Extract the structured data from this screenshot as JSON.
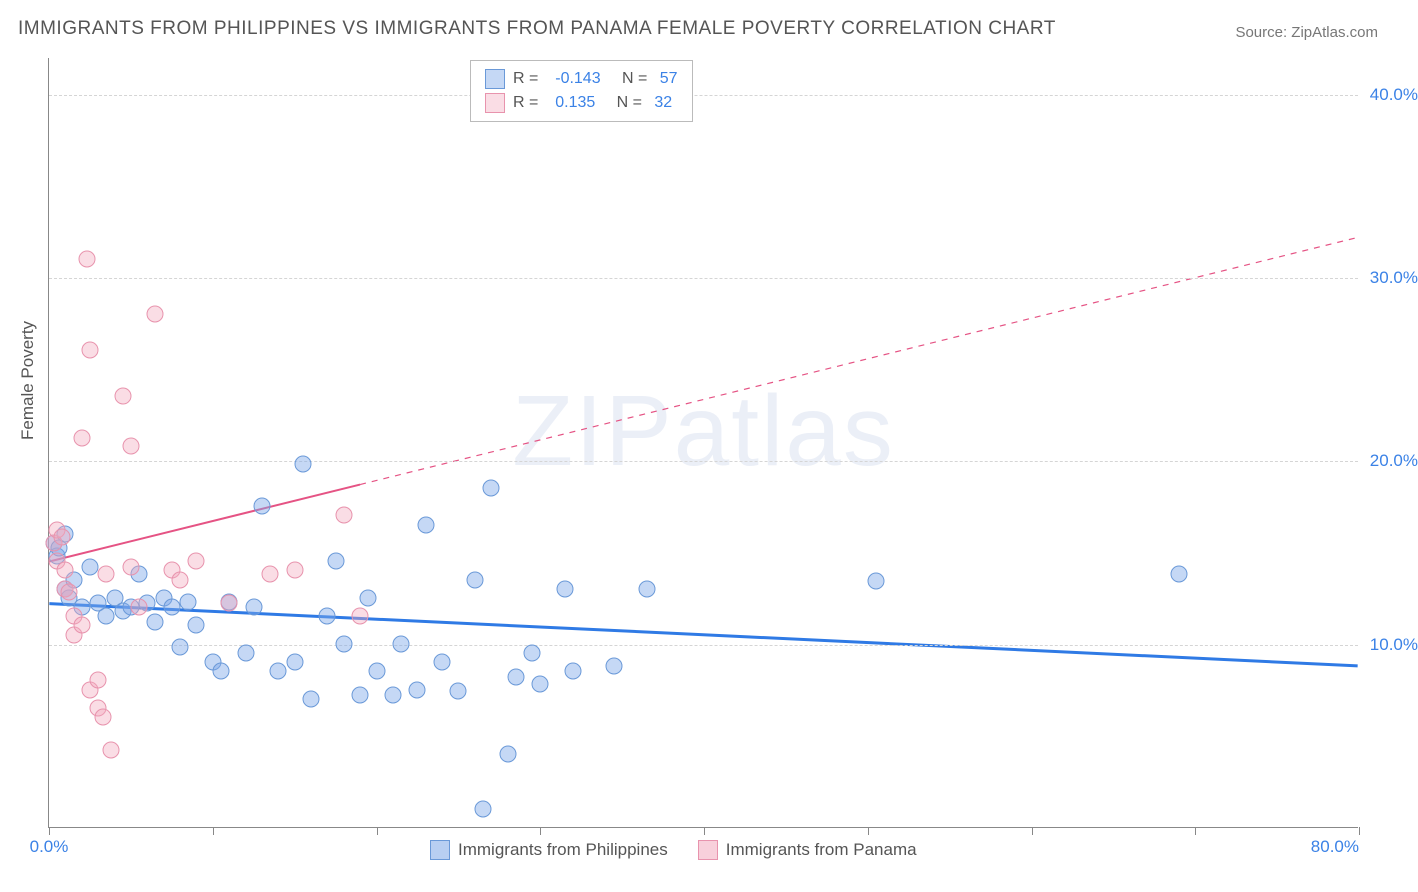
{
  "title": "IMMIGRANTS FROM PHILIPPINES VS IMMIGRANTS FROM PANAMA FEMALE POVERTY CORRELATION CHART",
  "source_label": "Source: ZipAtlas.com",
  "ylabel": "Female Poverty",
  "watermark": "ZIPatlas",
  "chart": {
    "type": "scatter",
    "background_color": "#ffffff",
    "grid_color": "#d5d5d5",
    "axis_color": "#888888",
    "x": {
      "min": 0.0,
      "max": 80.0,
      "ticks": [
        0.0,
        10.0,
        20.0,
        30.0,
        40.0,
        50.0,
        60.0,
        70.0,
        80.0
      ],
      "labels": {
        "0": "0.0%",
        "80": "80.0%"
      }
    },
    "y": {
      "min": 0.0,
      "max": 42.0,
      "ticks": [
        10.0,
        20.0,
        30.0,
        40.0
      ],
      "labels": [
        "10.0%",
        "20.0%",
        "30.0%",
        "40.0%"
      ]
    },
    "marker_radius": 8.5,
    "series": [
      {
        "name": "Immigrants from Philippines",
        "fill": "rgba(126,168,232,0.45)",
        "stroke": "#6a99d8",
        "r_value": "-0.143",
        "n_value": "57",
        "trend": {
          "color": "#2f7ae5",
          "width": 3,
          "solid_to_x": 80.0,
          "y_start": 12.2,
          "y_end": 8.8
        },
        "points": [
          [
            0.3,
            15.5
          ],
          [
            0.5,
            14.8
          ],
          [
            0.6,
            15.2
          ],
          [
            1.0,
            16.0
          ],
          [
            1.0,
            13.0
          ],
          [
            1.2,
            12.5
          ],
          [
            1.5,
            13.5
          ],
          [
            2.0,
            12.0
          ],
          [
            2.5,
            14.2
          ],
          [
            3.0,
            12.2
          ],
          [
            3.5,
            11.5
          ],
          [
            4.0,
            12.5
          ],
          [
            4.5,
            11.8
          ],
          [
            5.0,
            12.0
          ],
          [
            5.5,
            13.8
          ],
          [
            6.0,
            12.2
          ],
          [
            6.5,
            11.2
          ],
          [
            7.0,
            12.5
          ],
          [
            7.5,
            12.0
          ],
          [
            8.0,
            9.8
          ],
          [
            8.5,
            12.3
          ],
          [
            9.0,
            11.0
          ],
          [
            10.0,
            9.0
          ],
          [
            10.5,
            8.5
          ],
          [
            11.0,
            12.3
          ],
          [
            12.0,
            9.5
          ],
          [
            12.5,
            12.0
          ],
          [
            13.0,
            17.5
          ],
          [
            14.0,
            8.5
          ],
          [
            15.0,
            9.0
          ],
          [
            15.5,
            19.8
          ],
          [
            16.0,
            7.0
          ],
          [
            17.0,
            11.5
          ],
          [
            17.5,
            14.5
          ],
          [
            18.0,
            10.0
          ],
          [
            19.0,
            7.2
          ],
          [
            19.5,
            12.5
          ],
          [
            20.0,
            8.5
          ],
          [
            21.0,
            7.2
          ],
          [
            21.5,
            10.0
          ],
          [
            22.5,
            7.5
          ],
          [
            23.0,
            16.5
          ],
          [
            24.0,
            9.0
          ],
          [
            25.0,
            7.4
          ],
          [
            26.0,
            13.5
          ],
          [
            27.0,
            18.5
          ],
          [
            28.0,
            4.0
          ],
          [
            28.5,
            8.2
          ],
          [
            29.5,
            9.5
          ],
          [
            30.0,
            7.8
          ],
          [
            31.5,
            13.0
          ],
          [
            32.0,
            8.5
          ],
          [
            34.5,
            8.8
          ],
          [
            36.5,
            13.0
          ],
          [
            50.5,
            13.4
          ],
          [
            69.0,
            13.8
          ],
          [
            26.5,
            1.0
          ]
        ]
      },
      {
        "name": "Immigrants from Panama",
        "fill": "rgba(242,170,190,0.40)",
        "stroke": "#e893ad",
        "r_value": "0.135",
        "n_value": "32",
        "trend": {
          "color": "#e55384",
          "width": 2,
          "solid_to_x": 19.0,
          "y_start": 14.5,
          "y_end": 32.2
        },
        "points": [
          [
            0.3,
            15.5
          ],
          [
            0.5,
            16.2
          ],
          [
            0.5,
            14.5
          ],
          [
            0.8,
            15.8
          ],
          [
            1.0,
            14.0
          ],
          [
            1.0,
            13.0
          ],
          [
            1.2,
            12.8
          ],
          [
            1.5,
            11.5
          ],
          [
            1.5,
            10.5
          ],
          [
            2.0,
            21.2
          ],
          [
            2.0,
            11.0
          ],
          [
            2.3,
            31.0
          ],
          [
            2.5,
            26.0
          ],
          [
            2.5,
            7.5
          ],
          [
            3.0,
            6.5
          ],
          [
            3.0,
            8.0
          ],
          [
            3.3,
            6.0
          ],
          [
            3.5,
            13.8
          ],
          [
            3.8,
            4.2
          ],
          [
            4.5,
            23.5
          ],
          [
            5.0,
            20.8
          ],
          [
            5.0,
            14.2
          ],
          [
            5.5,
            12.0
          ],
          [
            6.5,
            28.0
          ],
          [
            7.5,
            14.0
          ],
          [
            8.0,
            13.5
          ],
          [
            9.0,
            14.5
          ],
          [
            11.0,
            12.2
          ],
          [
            13.5,
            13.8
          ],
          [
            15.0,
            14.0
          ],
          [
            18.0,
            17.0
          ],
          [
            19.0,
            11.5
          ]
        ]
      }
    ]
  },
  "legend_top": {
    "r_label": "R =",
    "n_label": "N ="
  },
  "bottom_legend": [
    {
      "label": "Immigrants from Philippines",
      "swatch_fill": "rgba(126,168,232,0.55)",
      "swatch_stroke": "#6a99d8"
    },
    {
      "label": "Immigrants from Panama",
      "swatch_fill": "rgba(242,170,190,0.55)",
      "swatch_stroke": "#e893ad"
    }
  ]
}
